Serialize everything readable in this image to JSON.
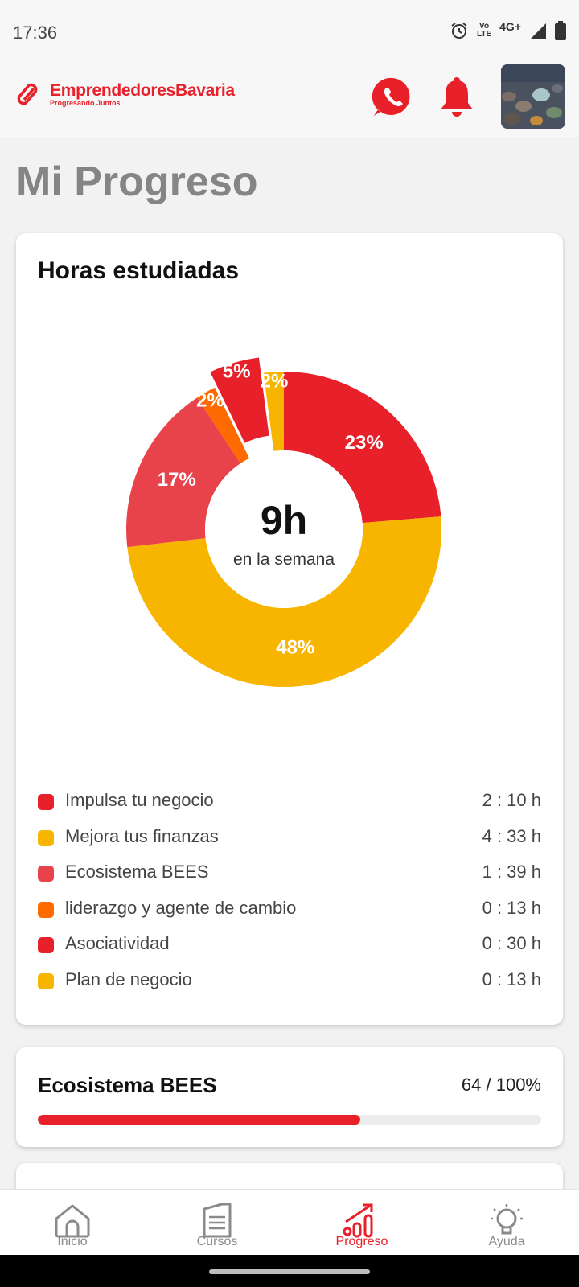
{
  "status_bar": {
    "time": "17:36",
    "volte_top": "Vo",
    "volte_bottom": "LTE",
    "network": "4G+"
  },
  "header": {
    "brand_name": "EmprendedoresBavaria",
    "brand_tagline": "Progresando Juntos"
  },
  "page": {
    "title": "Mi Progreso"
  },
  "hours_card": {
    "title": "Horas estudiadas",
    "center_value": "9h",
    "center_caption": "en la semana"
  },
  "chart_data": {
    "type": "pie",
    "variant": "donut",
    "exploded_slice": "Asociatividad",
    "series": [
      {
        "name": "Impulsa tu negocio",
        "value": 23,
        "label": "23%",
        "color": "#e8202a"
      },
      {
        "name": "Mejora tus finanzas",
        "value": 48,
        "label": "48%",
        "color": "#f7b500"
      },
      {
        "name": "Ecosistema BEES",
        "value": 17,
        "label": "17%",
        "color": "#e8434b"
      },
      {
        "name": "liderazgo y agente de cambio",
        "value": 2,
        "label": "2%",
        "color": "#ff6a00"
      },
      {
        "name": "Asociatividad",
        "value": 5,
        "label": "5%",
        "color": "#e8202a"
      },
      {
        "name": "Plan de negocio",
        "value": 2,
        "label": "2%",
        "color": "#f7b500"
      }
    ]
  },
  "legend": [
    {
      "label": "Impulsa tu negocio",
      "value": "2 : 10 h",
      "color": "#e8202a"
    },
    {
      "label": "Mejora tus finanzas",
      "value": "4 : 33 h",
      "color": "#f7b500"
    },
    {
      "label": "Ecosistema BEES",
      "value": "1 : 39 h",
      "color": "#e8434b"
    },
    {
      "label": "liderazgo y agente de cambio",
      "value": "0 : 13 h",
      "color": "#ff6a00"
    },
    {
      "label": "Asociatividad",
      "value": "0 : 30 h",
      "color": "#e8202a"
    },
    {
      "label": "Plan de negocio",
      "value": "0 : 13 h",
      "color": "#f7b500"
    }
  ],
  "progress_card": {
    "title": "Ecosistema BEES",
    "value_text": "64 / 100%",
    "progress": 0.64
  },
  "nav": {
    "inicio": "Inicio",
    "cursos": "Cursos",
    "progreso": "Progreso",
    "ayuda": "Ayuda"
  },
  "colors": {
    "accent": "#e8202a",
    "title_gray": "#858585"
  }
}
